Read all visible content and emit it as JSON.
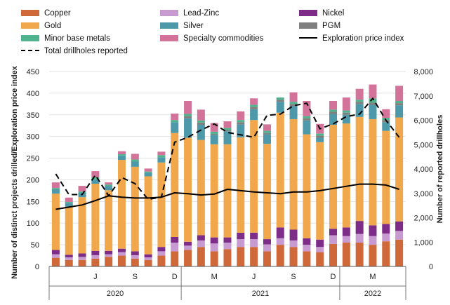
{
  "chart_data": {
    "type": "bar",
    "stacked": true,
    "colors": {
      "Copper": "#d0693a",
      "Gold": "#f1a84d",
      "Minor base metals": "#4fb48e",
      "Lead-Zinc": "#c79ad1",
      "Silver": "#4d98a9",
      "Specialty commodities": "#d4739a",
      "Nickel": "#7d2d87",
      "PGM": "#7f7f7f",
      "Total drillholes reported": "#000000",
      "Exploration price index": "#000000"
    },
    "legend": [
      {
        "name": "Copper",
        "kind": "bar"
      },
      {
        "name": "Lead-Zinc",
        "kind": "bar"
      },
      {
        "name": "Nickel",
        "kind": "bar"
      },
      {
        "name": "Gold",
        "kind": "bar"
      },
      {
        "name": "Silver",
        "kind": "bar"
      },
      {
        "name": "PGM",
        "kind": "bar"
      },
      {
        "name": "Minor base metals",
        "kind": "bar"
      },
      {
        "name": "Specialty commodities",
        "kind": "bar"
      },
      {
        "name": "Exploration price index",
        "kind": "solid"
      },
      {
        "name": "Total drillholes reported",
        "kind": "dashed"
      }
    ],
    "months": [
      "2020-03",
      "2020-04",
      "2020-05",
      "2020-06",
      "2020-07",
      "2020-08",
      "2020-09",
      "2020-10",
      "2020-11",
      "2020-12",
      "2021-01",
      "2021-02",
      "2021-03",
      "2021-04",
      "2021-05",
      "2021-06",
      "2021-07",
      "2021-08",
      "2021-09",
      "2021-10",
      "2021-11",
      "2021-12",
      "2022-01",
      "2022-02",
      "2022-03",
      "2022-04",
      "2022-05"
    ],
    "series": [
      {
        "name": "Copper",
        "values": [
          20,
          15,
          15,
          18,
          22,
          25,
          18,
          15,
          25,
          35,
          38,
          45,
          35,
          40,
          45,
          45,
          35,
          50,
          45,
          35,
          33,
          52,
          55,
          55,
          50,
          58,
          62
        ]
      },
      {
        "name": "Lead-Zinc",
        "values": [
          8,
          6,
          7,
          8,
          6,
          8,
          8,
          6,
          10,
          20,
          10,
          15,
          18,
          15,
          18,
          18,
          16,
          15,
          15,
          15,
          12,
          20,
          15,
          20,
          20,
          18,
          20
        ]
      },
      {
        "name": "Nickel",
        "values": [
          10,
          6,
          8,
          10,
          8,
          8,
          9,
          7,
          10,
          13,
          9,
          12,
          14,
          12,
          15,
          15,
          12,
          25,
          25,
          15,
          17,
          15,
          20,
          30,
          25,
          22,
          22
        ]
      },
      {
        "name": "Gold",
        "values": [
          130,
          110,
          130,
          155,
          140,
          205,
          195,
          180,
          195,
          240,
          240,
          220,
          215,
          215,
          220,
          260,
          220,
          265,
          255,
          240,
          225,
          240,
          240,
          240,
          245,
          215,
          240
        ]
      },
      {
        "name": "Silver",
        "values": [
          10,
          10,
          10,
          10,
          10,
          10,
          12,
          8,
          12,
          25,
          45,
          35,
          22,
          30,
          30,
          25,
          22,
          25,
          30,
          32,
          10,
          25,
          20,
          30,
          33,
          20,
          28
        ]
      },
      {
        "name": "PGM",
        "values": [
          0,
          0,
          0,
          0,
          0,
          0,
          0,
          0,
          0,
          0,
          5,
          5,
          2,
          3,
          5,
          5,
          3,
          5,
          5,
          5,
          5,
          5,
          5,
          5,
          5,
          5,
          5
        ]
      },
      {
        "name": "Minor base metals",
        "values": [
          3,
          2,
          3,
          5,
          3,
          3,
          5,
          3,
          5,
          5,
          5,
          5,
          5,
          5,
          5,
          5,
          5,
          5,
          5,
          5,
          5,
          5,
          5,
          5,
          10,
          5,
          5
        ]
      },
      {
        "name": "Specialty commodities",
        "values": [
          13,
          10,
          13,
          14,
          5,
          7,
          13,
          7,
          8,
          15,
          30,
          25,
          20,
          15,
          20,
          15,
          15,
          0,
          22,
          35,
          22,
          20,
          30,
          25,
          32,
          20,
          35
        ]
      }
    ],
    "lines": [
      {
        "name": "Total drillholes reported",
        "axis": "right",
        "style": "dashed",
        "values": [
          3800,
          2950,
          2950,
          3750,
          2900,
          3650,
          3400,
          2750,
          2850,
          5100,
          5300,
          5600,
          5850,
          5500,
          5400,
          5300,
          6200,
          6250,
          6600,
          6700,
          5650,
          5850,
          6150,
          6250,
          6900,
          6000,
          5300
        ]
      },
      {
        "name": "Exploration price index",
        "axis": "left",
        "style": "solid",
        "values": [
          132,
          137,
          142,
          152,
          163,
          160,
          158,
          158,
          160,
          170,
          168,
          165,
          167,
          178,
          175,
          172,
          170,
          168,
          172,
          172,
          175,
          180,
          185,
          190,
          190,
          188,
          178
        ]
      }
    ],
    "left_axis": {
      "title": "Number of distinct projects drilled/Exploration price index",
      "min": 0,
      "max": 450,
      "ticks": [
        0,
        50,
        100,
        150,
        200,
        250,
        300,
        350,
        400,
        450
      ]
    },
    "right_axis": {
      "title": "Number of reported drillholes",
      "min": 0,
      "max": 8000,
      "ticks": [
        "0",
        "1,000",
        "2,000",
        "3,000",
        "4,000",
        "5,000",
        "6,000",
        "7,000",
        "8,000"
      ]
    },
    "x_axis": {
      "month_labels": [
        {
          "index": 3,
          "label": "J"
        },
        {
          "index": 6,
          "label": "S"
        },
        {
          "index": 9,
          "label": "D"
        },
        {
          "index": 12,
          "label": "M"
        },
        {
          "index": 15,
          "label": "J"
        },
        {
          "index": 18,
          "label": "S"
        },
        {
          "index": 21,
          "label": "D"
        },
        {
          "index": 24,
          "label": "M"
        }
      ],
      "year_labels": [
        {
          "label": "2020",
          "start": 0,
          "end": 9
        },
        {
          "label": "2021",
          "start": 10,
          "end": 21
        },
        {
          "label": "2022",
          "start": 22,
          "end": 26
        }
      ]
    }
  }
}
